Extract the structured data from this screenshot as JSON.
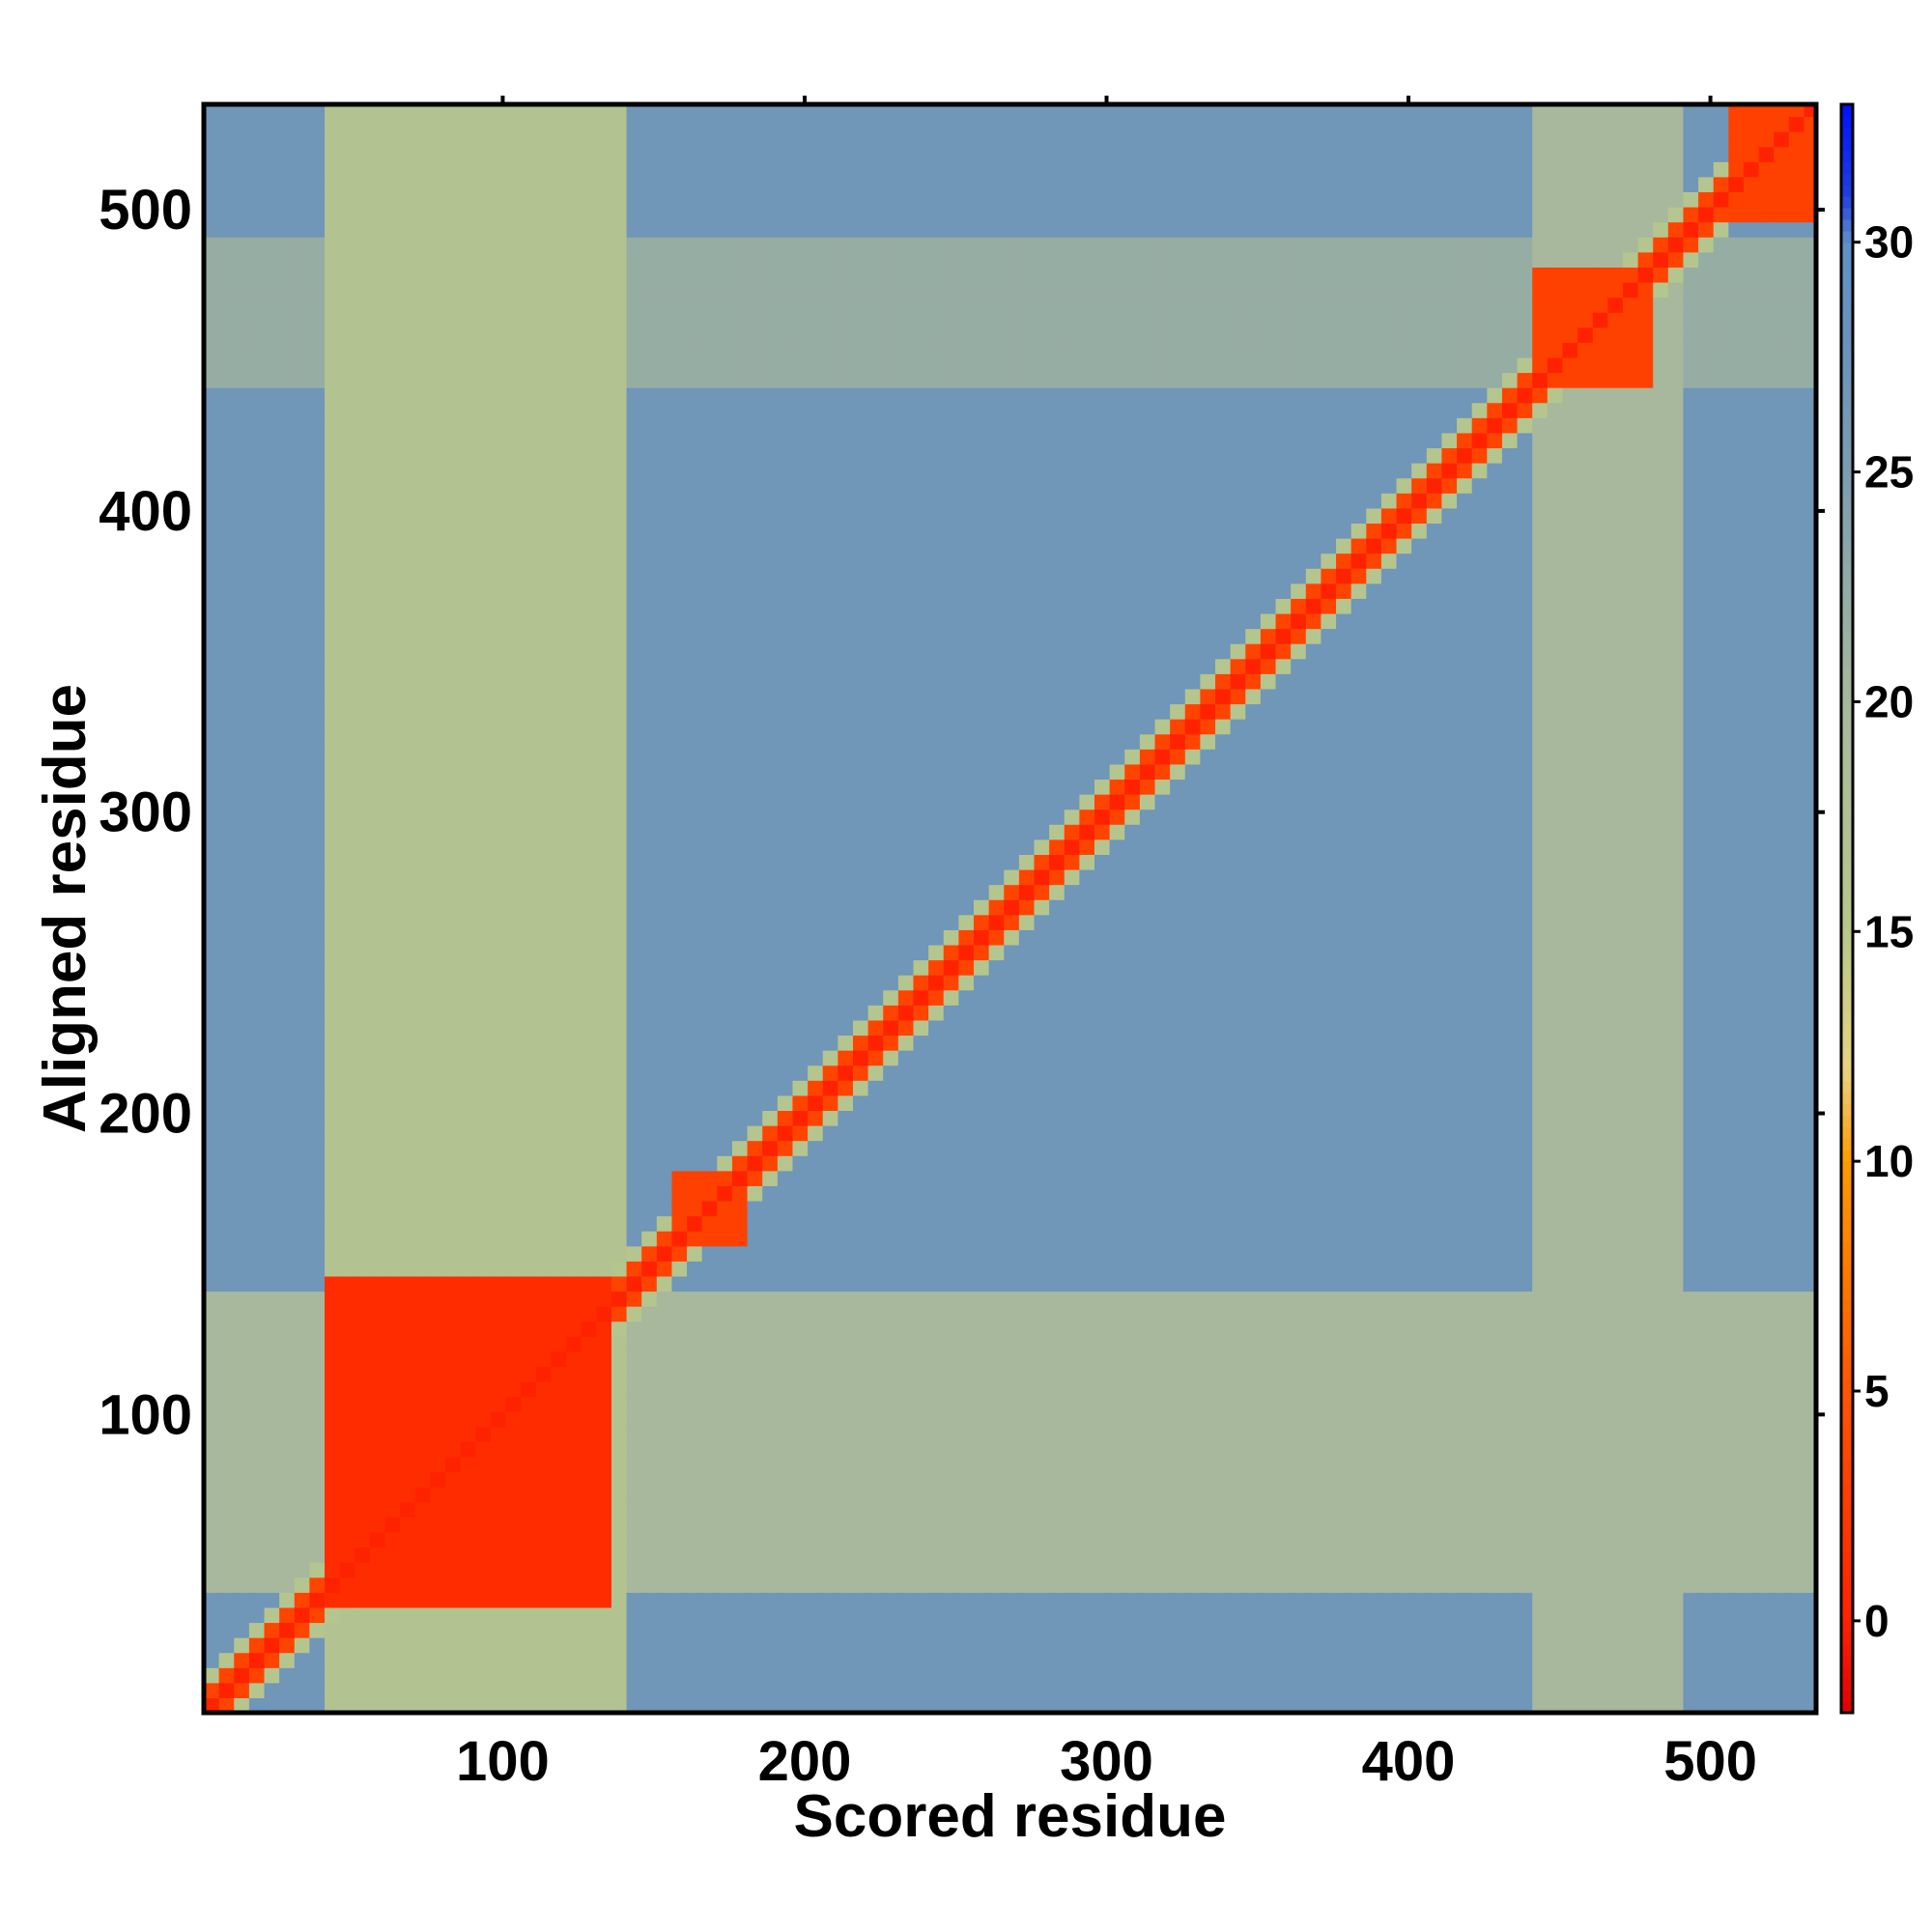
{
  "chart_data": {
    "type": "heatmap",
    "title": "",
    "xlabel": "Scored residue",
    "ylabel": "Aligned residue",
    "xlim": [
      1,
      535
    ],
    "ylim": [
      1,
      535
    ],
    "x_ticks": [
      100,
      200,
      300,
      400,
      500
    ],
    "y_ticks": [
      100,
      200,
      300,
      400,
      500
    ],
    "colorbar": {
      "range": [
        -2,
        33
      ],
      "ticks": [
        0,
        5,
        10,
        15,
        20,
        25,
        30
      ],
      "color_stops": [
        {
          "value": -2,
          "color": "#e00000"
        },
        {
          "value": 0,
          "color": "#ff2200"
        },
        {
          "value": 5,
          "color": "#ff5500"
        },
        {
          "value": 10,
          "color": "#ff9a00"
        },
        {
          "value": 12,
          "color": "#e8d280"
        },
        {
          "value": 15,
          "color": "#b8c88a"
        },
        {
          "value": 20,
          "color": "#a8b89c"
        },
        {
          "value": 25,
          "color": "#7c9db0"
        },
        {
          "value": 28,
          "color": "#6a92bc"
        },
        {
          "value": 30,
          "color": "#6090c8"
        },
        {
          "value": 31,
          "color": "#2040e0"
        },
        {
          "value": 33,
          "color": "#0010ff"
        }
      ]
    },
    "background_value": 27,
    "diagonal_value": 0,
    "diagonal_halfwidth_residues": 6,
    "domain_blocks": [
      {
        "x": [
          40,
          138
        ],
        "y": [
          36,
          145
        ],
        "value": 1
      },
      {
        "x": [
          155,
          180
        ],
        "y": [
          155,
          180
        ],
        "value": 3
      },
      {
        "x": [
          443,
          482
        ],
        "y": [
          442,
          483
        ],
        "value": 3
      },
      {
        "x": [
          505,
          535
        ],
        "y": [
          495,
          535
        ],
        "value": 3
      }
    ],
    "bands": [
      {
        "axis": "x",
        "range": [
          40,
          140
        ],
        "value": 17
      },
      {
        "axis": "y",
        "range": [
          40,
          140
        ],
        "value": 20
      },
      {
        "axis": "x",
        "range": [
          440,
          490
        ],
        "value": 20
      },
      {
        "axis": "y",
        "range": [
          440,
          490
        ],
        "value": 22
      }
    ]
  }
}
